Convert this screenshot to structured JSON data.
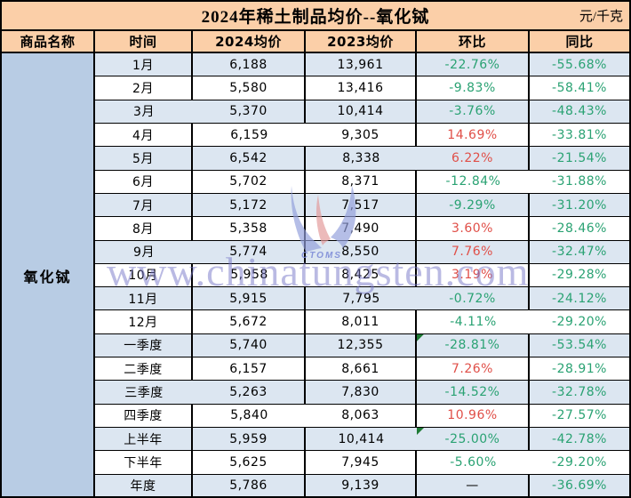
{
  "header": {
    "title": "2024年稀土制品均价--氧化铽",
    "unit": "元/千克"
  },
  "table": {
    "columns": [
      "商品名称",
      "时间",
      "2024均价",
      "2023均价",
      "环比",
      "同比"
    ],
    "product_name": "氧化铽",
    "rows": [
      {
        "time": "1月",
        "avg_2024": "6,188",
        "avg_2023": "13,961",
        "mom": "-22.76%",
        "mom_color": "green",
        "mom_flag": false,
        "yoy": "-55.68%",
        "yoy_color": "green"
      },
      {
        "time": "2月",
        "avg_2024": "5,580",
        "avg_2023": "13,416",
        "mom": "-9.83%",
        "mom_color": "green",
        "mom_flag": false,
        "yoy": "-58.41%",
        "yoy_color": "green"
      },
      {
        "time": "3月",
        "avg_2024": "5,370",
        "avg_2023": "10,414",
        "mom": "-3.76%",
        "mom_color": "green",
        "mom_flag": false,
        "yoy": "-48.43%",
        "yoy_color": "green"
      },
      {
        "time": "4月",
        "avg_2024": "6,159",
        "avg_2023": "9,305",
        "mom": "14.69%",
        "mom_color": "red",
        "mom_flag": false,
        "yoy": "-33.81%",
        "yoy_color": "green"
      },
      {
        "time": "5月",
        "avg_2024": "6,542",
        "avg_2023": "8,338",
        "mom": "6.22%",
        "mom_color": "red",
        "mom_flag": false,
        "yoy": "-21.54%",
        "yoy_color": "green"
      },
      {
        "time": "6月",
        "avg_2024": "5,702",
        "avg_2023": "8,371",
        "mom": "-12.84%",
        "mom_color": "green",
        "mom_flag": false,
        "yoy": "-31.88%",
        "yoy_color": "green"
      },
      {
        "time": "7月",
        "avg_2024": "5,172",
        "avg_2023": "7,517",
        "mom": "-9.29%",
        "mom_color": "green",
        "mom_flag": false,
        "yoy": "-31.20%",
        "yoy_color": "green"
      },
      {
        "time": "8月",
        "avg_2024": "5,358",
        "avg_2023": "7,490",
        "mom": "3.60%",
        "mom_color": "red",
        "mom_flag": false,
        "yoy": "-28.46%",
        "yoy_color": "green"
      },
      {
        "time": "9月",
        "avg_2024": "5,774",
        "avg_2023": "8,550",
        "mom": "7.76%",
        "mom_color": "red",
        "mom_flag": false,
        "yoy": "-32.47%",
        "yoy_color": "green"
      },
      {
        "time": "10月",
        "avg_2024": "5,958",
        "avg_2023": "8,425",
        "mom": "3.19%",
        "mom_color": "red",
        "mom_flag": false,
        "yoy": "-29.28%",
        "yoy_color": "green"
      },
      {
        "time": "11月",
        "avg_2024": "5,915",
        "avg_2023": "7,795",
        "mom": "-0.72%",
        "mom_color": "green",
        "mom_flag": false,
        "yoy": "-24.12%",
        "yoy_color": "green"
      },
      {
        "time": "12月",
        "avg_2024": "5,672",
        "avg_2023": "8,011",
        "mom": "-4.11%",
        "mom_color": "green",
        "mom_flag": false,
        "yoy": "-29.20%",
        "yoy_color": "green"
      },
      {
        "time": "一季度",
        "avg_2024": "5,740",
        "avg_2023": "12,355",
        "mom": "-28.81%",
        "mom_color": "green",
        "mom_flag": true,
        "yoy": "-53.54%",
        "yoy_color": "green"
      },
      {
        "time": "二季度",
        "avg_2024": "6,157",
        "avg_2023": "8,661",
        "mom": "7.26%",
        "mom_color": "red",
        "mom_flag": false,
        "yoy": "-28.91%",
        "yoy_color": "green"
      },
      {
        "time": "三季度",
        "avg_2024": "5,263",
        "avg_2023": "7,830",
        "mom": "-14.52%",
        "mom_color": "green",
        "mom_flag": false,
        "yoy": "-32.78%",
        "yoy_color": "green"
      },
      {
        "time": "四季度",
        "avg_2024": "5,840",
        "avg_2023": "8,063",
        "mom": "10.96%",
        "mom_color": "red",
        "mom_flag": false,
        "yoy": "-27.57%",
        "yoy_color": "green"
      },
      {
        "time": "上半年",
        "avg_2024": "5,959",
        "avg_2023": "10,414",
        "mom": "-25.00%",
        "mom_color": "green",
        "mom_flag": true,
        "yoy": "-42.78%",
        "yoy_color": "green"
      },
      {
        "time": "下半年",
        "avg_2024": "5,625",
        "avg_2023": "7,945",
        "mom": "-5.60%",
        "mom_color": "green",
        "mom_flag": false,
        "yoy": "-29.20%",
        "yoy_color": "green"
      },
      {
        "time": "年度",
        "avg_2024": "5,786",
        "avg_2023": "9,139",
        "mom": "—",
        "mom_color": "black",
        "mom_flag": false,
        "yoy": "-36.69%",
        "yoy_color": "green"
      }
    ]
  },
  "watermark": {
    "logo_caption": "CTOMS",
    "site_text": "www.chinatungsten.com"
  },
  "colors": {
    "header_bg": "#fbcfa8",
    "row_bg": "#ffffff",
    "row_alt_bg": "#dce6f1",
    "product_bg": "#b8cce4",
    "positive_red": "#e04f48",
    "negative_green": "#2aa273",
    "flag_green": "#1e7a34",
    "border": "#000000"
  }
}
